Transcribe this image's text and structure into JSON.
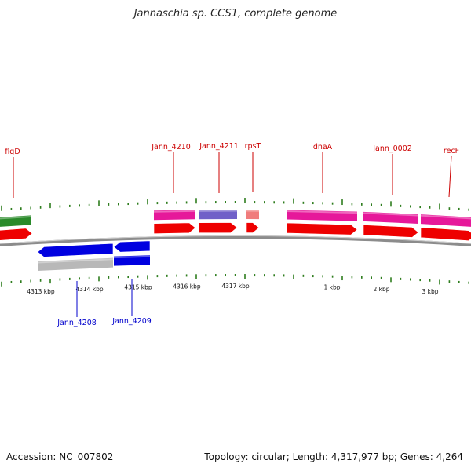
{
  "title": "Jannaschia sp. CCS1, complete genome",
  "footer": {
    "accession": "Accession: NC_007802",
    "stats": "Topology: circular; Length: 4,317,977 bp; Genes: 4,264"
  },
  "colors": {
    "backbone": "#8c8c8c",
    "tick": "#2e7d1e",
    "label_forward": "#cc0000",
    "label_reverse": "#0000cc"
  },
  "tick_labels": [
    "4313 kbp",
    "4314 kbp",
    "4315 kbp",
    "4316 kbp",
    "4317 kbp",
    "1 kbp",
    "2 kbp",
    "3 kbp"
  ],
  "genes_forward": [
    {
      "label": "flgD",
      "color": "#2a8a2a"
    },
    {
      "label": "Jann_4210",
      "color": "#e6189a"
    },
    {
      "label": "Jann_4211",
      "color": "#7060c8"
    },
    {
      "label": "rpsT",
      "color": "#f07c7c"
    },
    {
      "label": "dnaA",
      "color": "#e6189a"
    },
    {
      "label": "Jann_0002",
      "color": "#e6189a"
    },
    {
      "label": "recF",
      "color": "#e6189a"
    }
  ],
  "genes_reverse": [
    {
      "label": "Jann_4208",
      "color": "#0000e0"
    },
    {
      "label": "Jann_4209",
      "color": "#0000e0"
    }
  ]
}
